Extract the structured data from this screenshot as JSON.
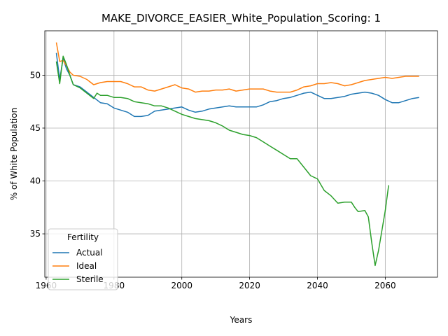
{
  "chart_data": {
    "type": "line",
    "title": "MAKE_DIVORCE_EASIER_White_Population_Scoring: 1",
    "xlabel": "Years",
    "ylabel": "% of White Population",
    "xlim": [
      1959.6,
      2075.4
    ],
    "ylim": [
      30.9,
      54.2
    ],
    "xticks": [
      1960,
      1980,
      2000,
      2020,
      2040,
      2060
    ],
    "yticks": [
      35,
      40,
      45,
      50
    ],
    "grid": true,
    "legend": {
      "title": "Fertility",
      "position": "lower-left"
    },
    "series": [
      {
        "name": "Actual",
        "color": "#1f77b4",
        "x": [
          1963,
          1964,
          1965,
          1966,
          1967,
          1968,
          1970,
          1972,
          1974,
          1976,
          1978,
          1980,
          1982,
          1984,
          1986,
          1988,
          1990,
          1992,
          1994,
          1996,
          1998,
          2000,
          2002,
          2004,
          2006,
          2008,
          2010,
          2012,
          2014,
          2016,
          2018,
          2020,
          2022,
          2024,
          2026,
          2028,
          2030,
          2032,
          2034,
          2036,
          2038,
          2040,
          2042,
          2044,
          2046,
          2048,
          2050,
          2052,
          2054,
          2056,
          2058,
          2060,
          2062,
          2064,
          2066,
          2068,
          2070
        ],
        "values": [
          52.1,
          49.6,
          51.6,
          50.6,
          50.0,
          49.1,
          48.9,
          48.4,
          47.9,
          47.4,
          47.3,
          46.9,
          46.7,
          46.5,
          46.1,
          46.1,
          46.2,
          46.6,
          46.7,
          46.8,
          46.9,
          47.0,
          46.7,
          46.5,
          46.6,
          46.8,
          46.9,
          47.0,
          47.1,
          47.0,
          47.0,
          47.0,
          47.0,
          47.2,
          47.5,
          47.6,
          47.8,
          47.9,
          48.1,
          48.3,
          48.4,
          48.1,
          47.8,
          47.8,
          47.9,
          48.0,
          48.2,
          48.3,
          48.4,
          48.3,
          48.1,
          47.7,
          47.4,
          47.4,
          47.6,
          47.8,
          47.9
        ]
      },
      {
        "name": "Ideal",
        "color": "#ff7f0e",
        "x": [
          1963,
          1964,
          1965,
          1966,
          1967,
          1968,
          1970,
          1972,
          1974,
          1976,
          1978,
          1980,
          1982,
          1984,
          1986,
          1988,
          1990,
          1992,
          1994,
          1996,
          1998,
          2000,
          2002,
          2004,
          2006,
          2008,
          2010,
          2012,
          2014,
          2016,
          2018,
          2020,
          2022,
          2024,
          2026,
          2028,
          2030,
          2032,
          2034,
          2036,
          2038,
          2040,
          2042,
          2044,
          2046,
          2048,
          2050,
          2052,
          2054,
          2056,
          2058,
          2060,
          2062,
          2064,
          2066,
          2068,
          2070
        ],
        "values": [
          53.1,
          51.3,
          51.4,
          50.9,
          50.3,
          50.0,
          49.9,
          49.6,
          49.1,
          49.3,
          49.4,
          49.4,
          49.4,
          49.2,
          48.9,
          48.9,
          48.6,
          48.5,
          48.7,
          48.9,
          49.1,
          48.8,
          48.7,
          48.4,
          48.5,
          48.5,
          48.6,
          48.6,
          48.7,
          48.5,
          48.6,
          48.7,
          48.7,
          48.7,
          48.5,
          48.4,
          48.4,
          48.4,
          48.6,
          48.9,
          49.0,
          49.2,
          49.2,
          49.3,
          49.2,
          49.0,
          49.1,
          49.3,
          49.5,
          49.6,
          49.7,
          49.8,
          49.7,
          49.8,
          49.9,
          49.9,
          49.9
        ]
      },
      {
        "name": "Sterile",
        "color": "#2ca02c",
        "x": [
          1963,
          1964,
          1965,
          1966,
          1967,
          1968,
          1970,
          1972,
          1974,
          1975,
          1976,
          1978,
          1980,
          1982,
          1984,
          1986,
          1988,
          1990,
          1992,
          1994,
          1996,
          1998,
          2000,
          2002,
          2004,
          2006,
          2008,
          2010,
          2012,
          2014,
          2016,
          2018,
          2020,
          2022,
          2024,
          2026,
          2028,
          2030,
          2032,
          2034,
          2036,
          2038,
          2040,
          2042,
          2044,
          2046,
          2048,
          2050,
          2051,
          2052,
          2054,
          2055,
          2056,
          2057,
          2058,
          2060,
          2061
        ],
        "values": [
          51.3,
          49.2,
          51.8,
          51.0,
          50.0,
          49.1,
          48.8,
          48.3,
          47.8,
          48.3,
          48.1,
          48.1,
          47.9,
          47.9,
          47.8,
          47.5,
          47.4,
          47.3,
          47.1,
          47.1,
          46.9,
          46.6,
          46.3,
          46.1,
          45.9,
          45.8,
          45.7,
          45.5,
          45.2,
          44.8,
          44.6,
          44.4,
          44.3,
          44.1,
          43.7,
          43.3,
          42.9,
          42.5,
          42.1,
          42.1,
          41.3,
          40.5,
          40.2,
          39.1,
          38.6,
          37.9,
          38.0,
          38.0,
          37.5,
          37.1,
          37.2,
          36.6,
          34.2,
          32.0,
          33.4,
          37.2,
          39.6
        ]
      }
    ]
  }
}
